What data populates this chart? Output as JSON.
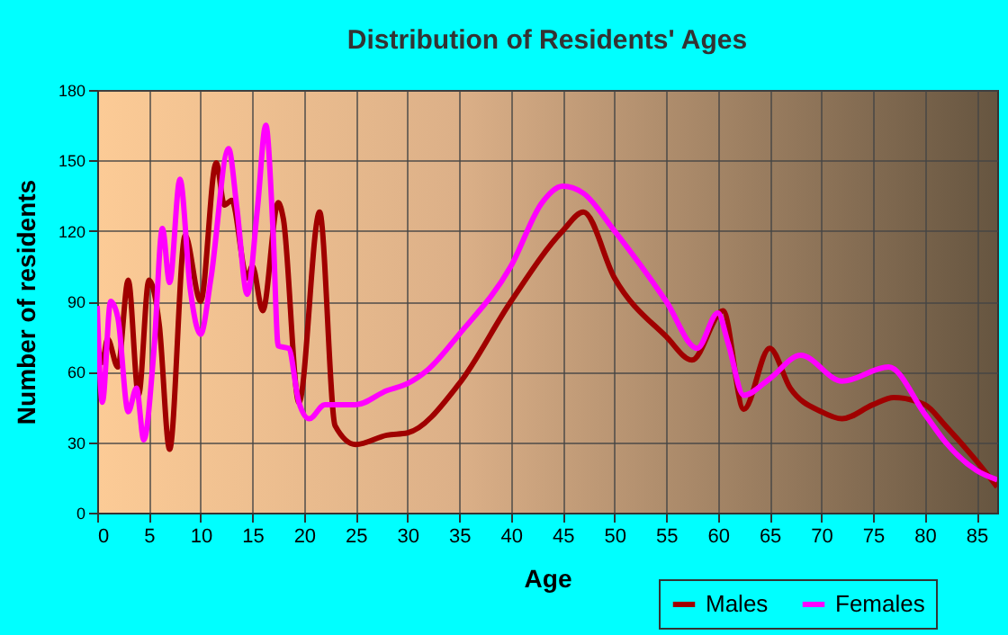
{
  "chart_data": {
    "type": "line",
    "title": "Distribution of Residents' Ages",
    "xlabel": "Age",
    "ylabel": "Number of residents",
    "xlim": [
      0,
      87
    ],
    "xticks": [
      0,
      5,
      10,
      15,
      20,
      25,
      30,
      35,
      40,
      45,
      50,
      55,
      60,
      65,
      70,
      75,
      80,
      85
    ],
    "ylim": [
      0,
      180
    ],
    "yticks": [
      0,
      30,
      60,
      90,
      120,
      150,
      180
    ],
    "grid": true,
    "legend": "bottom right",
    "line_style": "solid",
    "marker": "none",
    "series": [
      {
        "name": "Males",
        "color": "#a00000",
        "x": [
          0,
          0.5,
          1,
          2,
          3,
          4,
          5,
          6,
          7,
          8.5,
          10,
          11.5,
          12.3,
          13,
          14.5,
          15,
          16,
          17.5,
          18,
          19.5,
          21.5,
          23,
          25,
          28,
          30,
          35,
          40,
          45,
          47,
          50,
          55,
          57.5,
          60.5,
          62.5,
          65,
          67,
          70,
          72,
          75,
          77,
          80,
          82,
          85,
          87
        ],
        "values": [
          73,
          64,
          74,
          62,
          99,
          50,
          99,
          80,
          27,
          118,
          90,
          149,
          131,
          133,
          100,
          105,
          86,
          132,
          125,
          47,
          128,
          37,
          29,
          33,
          34,
          55,
          90,
          120,
          128,
          100,
          75,
          65,
          86,
          44,
          70,
          53,
          43,
          40,
          46,
          49,
          46,
          37,
          22,
          11
        ]
      },
      {
        "name": "Females",
        "color": "#ff00ff",
        "x": [
          0,
          0.5,
          1.3,
          2,
          3,
          3.8,
          4.5,
          5.5,
          6.3,
          7,
          8,
          9,
          10,
          11,
          12.7,
          13.5,
          14.5,
          15.5,
          16.3,
          17,
          17.5,
          18.5,
          19.5,
          20.5,
          22,
          25,
          28,
          30,
          32,
          35,
          40,
          43,
          45,
          47,
          50,
          55,
          58,
          60,
          61,
          62.5,
          65,
          68,
          72,
          76.5,
          80,
          82,
          85,
          87
        ],
        "values": [
          88,
          47,
          90,
          83,
          43,
          53,
          31,
          70,
          121,
          98,
          142,
          95,
          76,
          100,
          155,
          130,
          93,
          130,
          165,
          120,
          71,
          70,
          47,
          40,
          46,
          46,
          52,
          55,
          61,
          76,
          105,
          132,
          139,
          136,
          120,
          90,
          70,
          85,
          72,
          50,
          57,
          67,
          56,
          62,
          42,
          30,
          18,
          14
        ]
      }
    ]
  }
}
